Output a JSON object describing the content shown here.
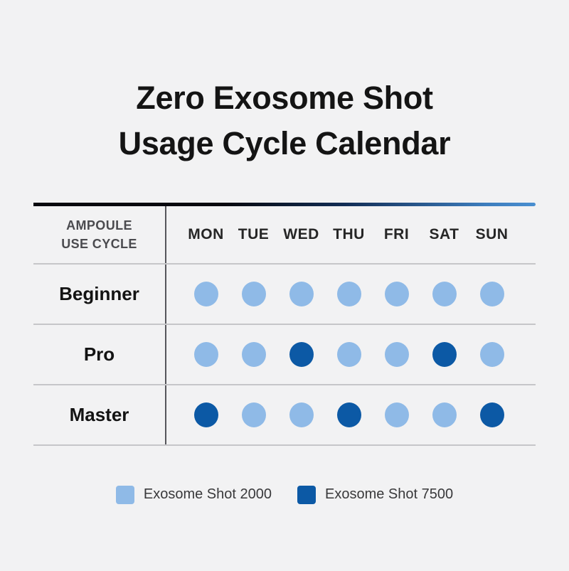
{
  "title": {
    "line1": "Zero Exosome Shot",
    "line2": "Usage Cycle Calendar"
  },
  "table": {
    "corner": {
      "line1": "AMPOULE",
      "line2": "USE CYCLE"
    },
    "days": [
      "MON",
      "TUE",
      "WED",
      "THU",
      "FRI",
      "SAT",
      "SUN"
    ],
    "rows": [
      {
        "label": "Beginner",
        "dots": [
          "light",
          "light",
          "light",
          "light",
          "light",
          "light",
          "light"
        ]
      },
      {
        "label": "Pro",
        "dots": [
          "light",
          "light",
          "dark",
          "light",
          "light",
          "dark",
          "light"
        ]
      },
      {
        "label": "Master",
        "dots": [
          "dark",
          "light",
          "light",
          "dark",
          "light",
          "light",
          "dark"
        ]
      }
    ]
  },
  "legend": {
    "items": [
      {
        "label": "Exosome Shot 2000",
        "swatch": "light",
        "color": "#8FBAE7"
      },
      {
        "label": "Exosome Shot 7500",
        "swatch": "dark",
        "color": "#0C59A5"
      }
    ]
  },
  "colors": {
    "background": "#F2F2F3",
    "light_dot": "#8FBAE7",
    "dark_dot": "#0C59A5",
    "divider": "#56565B",
    "grid_line": "#C6C6C9",
    "top_border_gradient_start": "#08080E",
    "top_border_gradient_end": "#4A8FD0"
  },
  "chart_data": {
    "type": "table",
    "title": "Zero Exosome Shot Usage Cycle Calendar",
    "row_header": "AMPOULE USE CYCLE",
    "columns": [
      "MON",
      "TUE",
      "WED",
      "THU",
      "FRI",
      "SAT",
      "SUN"
    ],
    "rows": [
      {
        "name": "Beginner",
        "values": [
          "2000",
          "2000",
          "2000",
          "2000",
          "2000",
          "2000",
          "2000"
        ]
      },
      {
        "name": "Pro",
        "values": [
          "2000",
          "2000",
          "7500",
          "2000",
          "2000",
          "7500",
          "2000"
        ]
      },
      {
        "name": "Master",
        "values": [
          "7500",
          "2000",
          "2000",
          "7500",
          "2000",
          "2000",
          "7500"
        ]
      }
    ],
    "legend": [
      {
        "value": "2000",
        "label": "Exosome Shot 2000"
      },
      {
        "value": "7500",
        "label": "Exosome Shot 7500"
      }
    ],
    "legend_position": "bottom"
  }
}
